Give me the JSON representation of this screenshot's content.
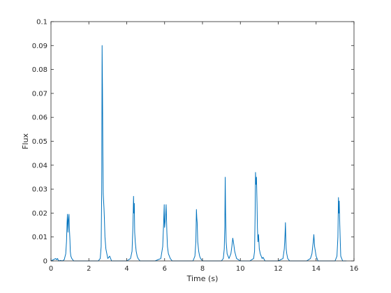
{
  "chart_data": {
    "type": "line",
    "title": "",
    "xlabel": "Time (s)",
    "ylabel": "Flux",
    "xlim": [
      0,
      16
    ],
    "ylim": [
      0,
      0.1
    ],
    "xticks": [
      0,
      2,
      4,
      6,
      8,
      10,
      12,
      14,
      16
    ],
    "yticks": [
      0,
      0.01,
      0.02,
      0.03,
      0.04,
      0.05,
      0.06,
      0.07,
      0.08,
      0.09,
      0.1
    ],
    "xtick_labels": [
      "0",
      "2",
      "4",
      "6",
      "8",
      "10",
      "12",
      "14",
      "16"
    ],
    "ytick_labels": [
      "0",
      "0.01",
      "0.02",
      "0.03",
      "0.04",
      "0.05",
      "0.06",
      "0.07",
      "0.08",
      "0.09",
      "0.1"
    ],
    "grid": false,
    "box": true,
    "line_color": "#0072BD",
    "series": [
      {
        "x": [
          0,
          0.25,
          0.3,
          0.35,
          0.4,
          0.5,
          0.6,
          0.7,
          0.78,
          0.82,
          0.85,
          0.87,
          0.9,
          0.92,
          0.95,
          0.97,
          1.0,
          1.02,
          1.05,
          1.1,
          1.15,
          1.2,
          1.5,
          2.0,
          2.5,
          2.6,
          2.65,
          2.68,
          2.7,
          2.72,
          2.74,
          2.76,
          2.78,
          2.8,
          2.82,
          2.85,
          2.9,
          3.0,
          3.1,
          3.2,
          3.5,
          4.0,
          4.2,
          4.28,
          4.33,
          4.36,
          4.38,
          4.4,
          4.42,
          4.45,
          4.5,
          4.55,
          4.6,
          4.7,
          4.8,
          5.5,
          5.8,
          5.9,
          5.95,
          5.98,
          6.0,
          6.05,
          6.08,
          6.12,
          6.15,
          6.2,
          6.3,
          6.4,
          6.6,
          7.0,
          7.5,
          7.6,
          7.65,
          7.68,
          7.7,
          7.72,
          7.75,
          7.8,
          7.85,
          7.9,
          8.0,
          8.5,
          9.0,
          9.1,
          9.15,
          9.18,
          9.2,
          9.22,
          9.25,
          9.3,
          9.4,
          9.5,
          9.55,
          9.6,
          9.65,
          9.7,
          9.8,
          10.0,
          10.5,
          10.7,
          10.75,
          10.78,
          10.8,
          10.82,
          10.85,
          10.88,
          10.9,
          10.93,
          10.96,
          11.0,
          11.05,
          11.1,
          11.15,
          11.2,
          11.3,
          11.5,
          12.0,
          12.25,
          12.32,
          12.36,
          12.38,
          12.4,
          12.42,
          12.45,
          12.5,
          12.6,
          12.8,
          13.5,
          13.7,
          13.78,
          13.82,
          13.85,
          13.88,
          13.92,
          13.96,
          14.0,
          14.05,
          14.1,
          14.2,
          14.5,
          15.0,
          15.1,
          15.15,
          15.18,
          15.2,
          15.22,
          15.25,
          15.28,
          15.3,
          15.35,
          15.4,
          15.5,
          15.6
        ],
        "y": [
          0,
          0.001,
          0.0005,
          0.001,
          0,
          0.0002,
          0,
          0.0005,
          0.003,
          0.008,
          0.016,
          0.0195,
          0.012,
          0.017,
          0.0195,
          0.014,
          0.009,
          0.004,
          0.002,
          0.001,
          0.0005,
          0,
          0,
          0,
          0,
          0.001,
          0.006,
          0.03,
          0.09,
          0.072,
          0.045,
          0.028,
          0.025,
          0.022,
          0.018,
          0.01,
          0.005,
          0.001,
          0.002,
          0,
          0,
          0,
          0.001,
          0.004,
          0.015,
          0.027,
          0.02,
          0.024,
          0.012,
          0.008,
          0.004,
          0.002,
          0.001,
          0,
          0,
          0,
          0.001,
          0.006,
          0.016,
          0.0235,
          0.014,
          0.018,
          0.0235,
          0.012,
          0.006,
          0.003,
          0.001,
          0,
          0,
          0,
          0,
          0.002,
          0.008,
          0.0215,
          0.018,
          0.016,
          0.008,
          0.004,
          0.002,
          0.001,
          0,
          0,
          0,
          0.001,
          0.005,
          0.015,
          0.035,
          0.02,
          0.008,
          0.003,
          0.001,
          0.003,
          0.006,
          0.0095,
          0.007,
          0.004,
          0.001,
          0,
          0,
          0.001,
          0.004,
          0.02,
          0.037,
          0.032,
          0.035,
          0.024,
          0.014,
          0.008,
          0.011,
          0.005,
          0.003,
          0.002,
          0.001,
          0.0015,
          0,
          0,
          0,
          0.001,
          0.005,
          0.011,
          0.016,
          0.009,
          0.005,
          0.003,
          0.001,
          0,
          0,
          0,
          0.001,
          0.003,
          0.006,
          0.008,
          0.011,
          0.006,
          0.004,
          0.002,
          0.001,
          0,
          0,
          0,
          0,
          0.002,
          0.01,
          0.0265,
          0.02,
          0.025,
          0.015,
          0.007,
          0.002,
          0.001,
          0,
          0,
          0
        ]
      }
    ]
  }
}
